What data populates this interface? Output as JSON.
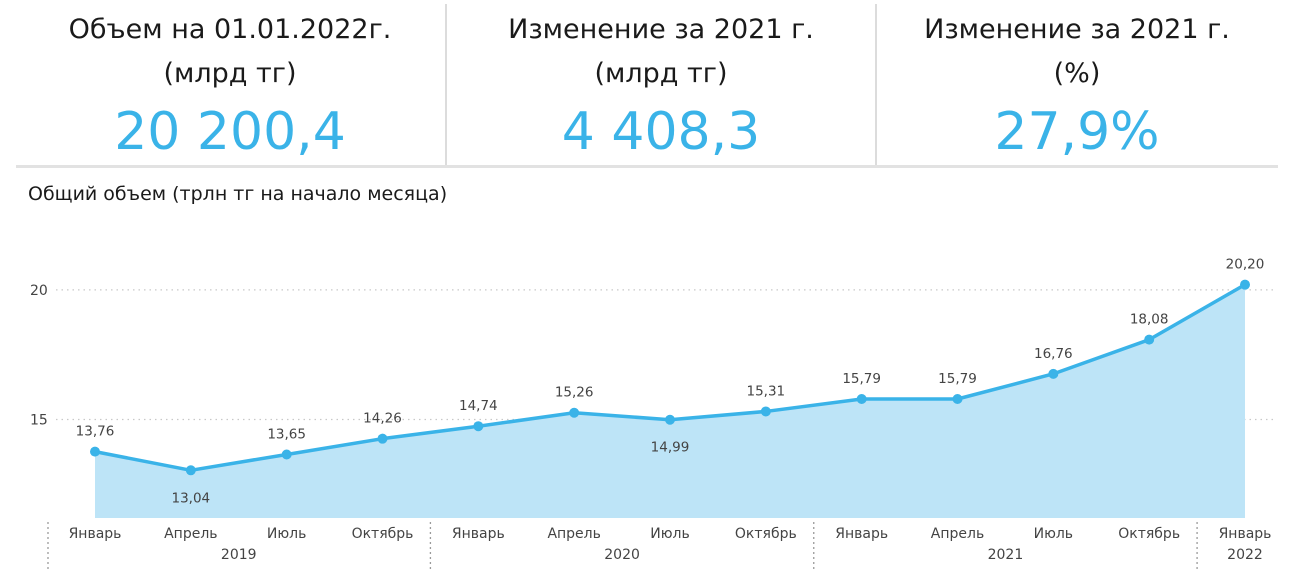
{
  "kpis": [
    {
      "title_line1": "Объем на 01.01.2022г.",
      "title_line2": "(млрд тг)",
      "value": "20 200,4"
    },
    {
      "title_line1": "Изменение за 2021 г.",
      "title_line2": "(млрд тг)",
      "value": "4 408,3"
    },
    {
      "title_line1": "Изменение за 2021 г.",
      "title_line2": "(%)",
      "value": "27,9%"
    }
  ],
  "colors": {
    "accent": "#3ab3e8",
    "line": "#3ab3e8",
    "area": "#bde4f7",
    "grid": "#c8c8c8",
    "text": "#1a1a1a",
    "axis_text": "#444444"
  },
  "chart_data": {
    "type": "area",
    "title": "Общий объем (трлн тг на начало месяца)",
    "xlabel": "",
    "ylabel": "",
    "ylim": [
      11.2,
      22.0
    ],
    "y_ticks": [
      15,
      20
    ],
    "grid": "dotted horizontal",
    "legend": "none",
    "x": [
      "Январь",
      "Апрель",
      "Июль",
      "Октябрь",
      "Январь",
      "Апрель",
      "Июль",
      "Октябрь",
      "Январь",
      "Апрель",
      "Июль",
      "Октябрь",
      "Январь"
    ],
    "year_groups": [
      {
        "label": "2019",
        "start": 0,
        "end": 3
      },
      {
        "label": "2020",
        "start": 4,
        "end": 7
      },
      {
        "label": "2021",
        "start": 8,
        "end": 11
      },
      {
        "label": "2022",
        "start": 12,
        "end": 12
      }
    ],
    "series": [
      {
        "values": [
          13.76,
          13.04,
          13.65,
          14.26,
          14.74,
          15.26,
          14.99,
          15.31,
          15.79,
          15.79,
          16.76,
          18.08,
          20.2
        ],
        "data_labels": [
          "13,76",
          "13,04",
          "13,65",
          "14,26",
          "14,74",
          "15,26",
          "14,99",
          "15,31",
          "15,79",
          "15,79",
          "16,76",
          "18,08",
          "20,20"
        ],
        "label_position": [
          "above",
          "below",
          "above",
          "above",
          "above",
          "above",
          "below",
          "above",
          "above",
          "above",
          "above",
          "above",
          "above"
        ]
      }
    ]
  }
}
